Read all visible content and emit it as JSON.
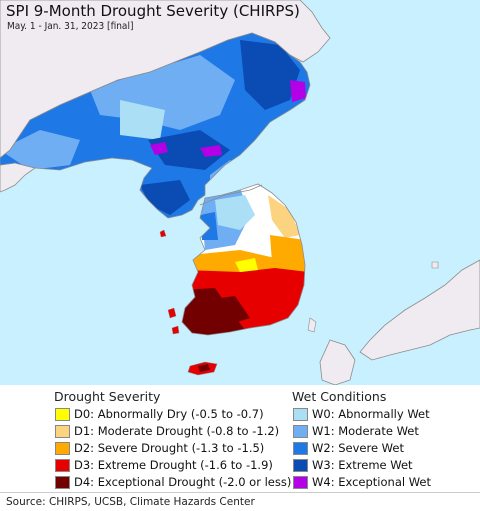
{
  "header": {
    "title": "SPI 9-Month Drought Severity (CHIRPS)",
    "subtitle": "May. 1 - Jan. 31, 2023 [final]"
  },
  "legend": {
    "drought": {
      "title": "Drought Severity",
      "items": [
        {
          "label": "D0: Abnormally Dry (-0.5 to -0.7)",
          "color": "#ffff00"
        },
        {
          "label": "D1: Moderate Drought (-0.8 to -1.2)",
          "color": "#fcd37f"
        },
        {
          "label": "D2: Severe Drought (-1.3 to -1.5)",
          "color": "#ffaa00"
        },
        {
          "label": "D3: Extreme Drought (-1.6 to -1.9)",
          "color": "#e60000"
        },
        {
          "label": "D4: Exceptional Drought (-2.0 or less)",
          "color": "#730000"
        }
      ]
    },
    "wet": {
      "title": "Wet Conditions",
      "items": [
        {
          "label": "W0: Abnormally Wet",
          "color": "#aadff6"
        },
        {
          "label": "W1: Moderate Wet",
          "color": "#6faef2"
        },
        {
          "label": "W2: Severe Wet",
          "color": "#1e78e6"
        },
        {
          "label": "W3: Extreme Wet",
          "color": "#0a4bb4"
        },
        {
          "label": "W4: Exceptional Wet",
          "color": "#b400e6"
        }
      ]
    }
  },
  "footer": {
    "source": "Source: CHIRPS, UCSB, Climate Hazards Center"
  },
  "colors": {
    "sea": "#c8f0ff",
    "land": "#f0ebf0",
    "normal": "#ffffff",
    "border": "#8c8c8c"
  }
}
